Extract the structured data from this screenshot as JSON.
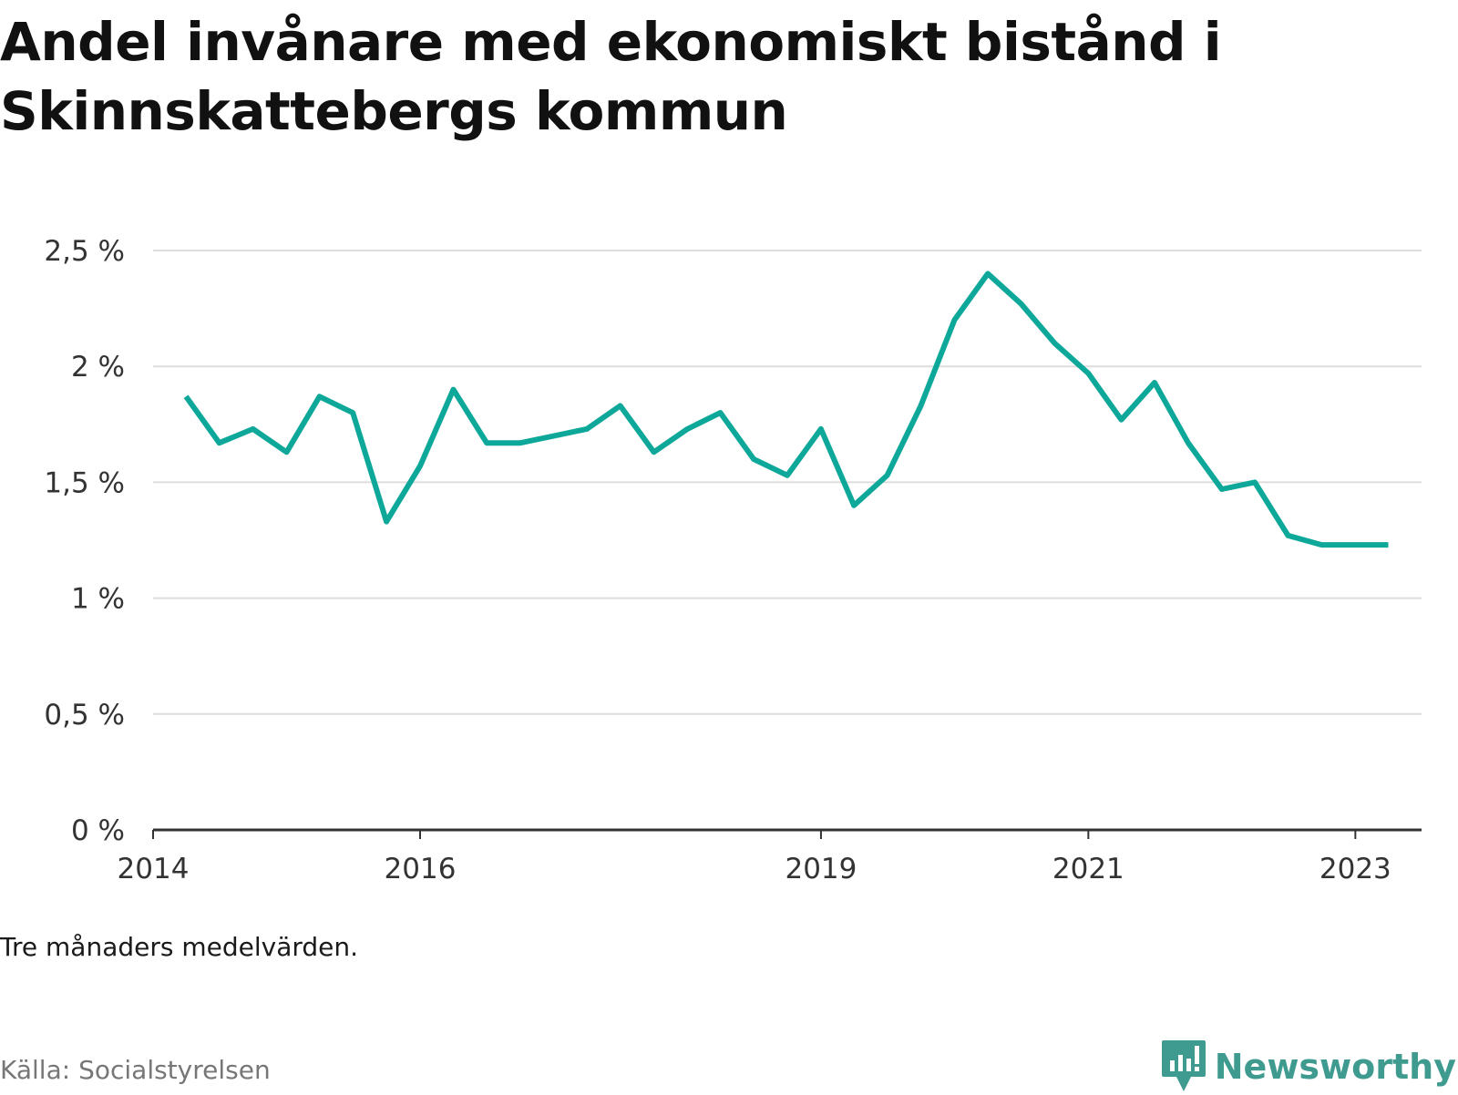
{
  "title": "Andel invånare med ekonomiskt bistånd i Skinnskattebergs kommun",
  "note": "Tre månaders medelvärden.",
  "source": "Källa: Socialstyrelsen",
  "brand": {
    "name": "Newsworthy",
    "icon": "newsworthy-logo-icon"
  },
  "colors": {
    "line": "#0ea89a",
    "grid": "#dddddd",
    "axis": "#333333",
    "brand": "#3f9b8f"
  },
  "chart_data": {
    "type": "line",
    "title": "Andel invånare med ekonomiskt bistånd i Skinnskattebergs kommun",
    "xlabel": "",
    "ylabel": "",
    "ylim": [
      0,
      2.5
    ],
    "xlim": [
      "2014-01-01",
      "2023-07-01"
    ],
    "grid": true,
    "y_ticks": [
      {
        "value": 0,
        "label": "0 %"
      },
      {
        "value": 0.5,
        "label": "0,5 %"
      },
      {
        "value": 1,
        "label": "1 %"
      },
      {
        "value": 1.5,
        "label": "1,5 %"
      },
      {
        "value": 2,
        "label": "2 %"
      },
      {
        "value": 2.5,
        "label": "2,5 %"
      }
    ],
    "x_ticks": [
      {
        "value": "2014-01-01",
        "label": "2014"
      },
      {
        "value": "2016-01-01",
        "label": "2016"
      },
      {
        "value": "2019-01-01",
        "label": "2019"
      },
      {
        "value": "2021-01-01",
        "label": "2021"
      },
      {
        "value": "2023-01-01",
        "label": "2023"
      }
    ],
    "series": [
      {
        "x": [
          "2014-04-01",
          "2014-07-01",
          "2014-10-01",
          "2015-01-01",
          "2015-04-01",
          "2015-07-01",
          "2015-10-01",
          "2016-01-01",
          "2016-04-01",
          "2016-07-01",
          "2016-10-01",
          "2017-01-01",
          "2017-04-01",
          "2017-07-01",
          "2017-10-01",
          "2018-01-01",
          "2018-04-01",
          "2018-07-01",
          "2018-10-01",
          "2019-01-01",
          "2019-04-01",
          "2019-07-01",
          "2019-10-01",
          "2020-01-01",
          "2020-04-01",
          "2020-07-01",
          "2020-10-01",
          "2021-01-01",
          "2021-04-01",
          "2021-07-01",
          "2021-10-01",
          "2022-01-01",
          "2022-04-01",
          "2022-07-01",
          "2022-10-01",
          "2023-01-01",
          "2023-04-01"
        ],
        "values": [
          1.87,
          1.67,
          1.73,
          1.63,
          1.87,
          1.8,
          1.33,
          1.57,
          1.9,
          1.67,
          1.67,
          1.7,
          1.73,
          1.83,
          1.63,
          1.73,
          1.8,
          1.6,
          1.53,
          1.73,
          1.4,
          1.53,
          1.83,
          2.2,
          2.4,
          2.27,
          2.1,
          1.97,
          1.77,
          1.93,
          1.67,
          1.47,
          1.5,
          1.27,
          1.23,
          1.23,
          1.23
        ]
      }
    ]
  }
}
